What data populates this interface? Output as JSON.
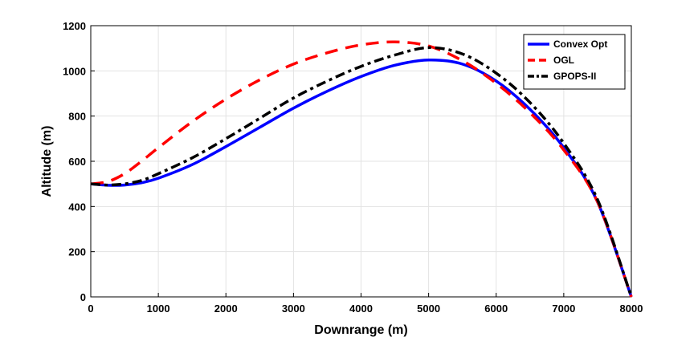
{
  "chart_data": {
    "type": "line",
    "xlabel": "Downrange (m)",
    "ylabel": "Altitude (m)",
    "xlim": [
      0,
      8000
    ],
    "ylim": [
      0,
      1200
    ],
    "xticks": [
      0,
      1000,
      2000,
      3000,
      4000,
      5000,
      6000,
      7000,
      8000
    ],
    "yticks": [
      0,
      200,
      400,
      600,
      800,
      1000,
      1200
    ],
    "grid": true,
    "legend_position": "top-right",
    "series": [
      {
        "name": "Convex Opt",
        "color": "#0000ff",
        "style": "solid",
        "points": [
          [
            0,
            500
          ],
          [
            250,
            494
          ],
          [
            500,
            495
          ],
          [
            750,
            505
          ],
          [
            1000,
            525
          ],
          [
            1500,
            585
          ],
          [
            2000,
            665
          ],
          [
            2500,
            750
          ],
          [
            3000,
            835
          ],
          [
            3500,
            910
          ],
          [
            4000,
            975
          ],
          [
            4500,
            1025
          ],
          [
            5000,
            1048
          ],
          [
            5500,
            1030
          ],
          [
            6000,
            955
          ],
          [
            6500,
            830
          ],
          [
            7000,
            660
          ],
          [
            7500,
            420
          ],
          [
            8000,
            0
          ]
        ]
      },
      {
        "name": "OGL",
        "color": "#ff0000",
        "style": "dashed",
        "points": [
          [
            0,
            500
          ],
          [
            250,
            510
          ],
          [
            500,
            545
          ],
          [
            750,
            600
          ],
          [
            1000,
            660
          ],
          [
            1500,
            775
          ],
          [
            2000,
            875
          ],
          [
            2500,
            960
          ],
          [
            3000,
            1030
          ],
          [
            3500,
            1080
          ],
          [
            4000,
            1115
          ],
          [
            4500,
            1128
          ],
          [
            5000,
            1110
          ],
          [
            5500,
            1045
          ],
          [
            6000,
            945
          ],
          [
            6500,
            815
          ],
          [
            7000,
            650
          ],
          [
            7500,
            420
          ],
          [
            8000,
            0
          ]
        ]
      },
      {
        "name": "GPOPS-II",
        "color": "#000000",
        "style": "dashdot",
        "points": [
          [
            0,
            500
          ],
          [
            250,
            495
          ],
          [
            500,
            500
          ],
          [
            750,
            515
          ],
          [
            1000,
            545
          ],
          [
            1500,
            615
          ],
          [
            2000,
            700
          ],
          [
            2500,
            790
          ],
          [
            3000,
            880
          ],
          [
            3500,
            955
          ],
          [
            4000,
            1020
          ],
          [
            4500,
            1070
          ],
          [
            5000,
            1103
          ],
          [
            5500,
            1075
          ],
          [
            6000,
            990
          ],
          [
            6500,
            860
          ],
          [
            7000,
            680
          ],
          [
            7500,
            430
          ],
          [
            8000,
            0
          ]
        ]
      }
    ]
  }
}
